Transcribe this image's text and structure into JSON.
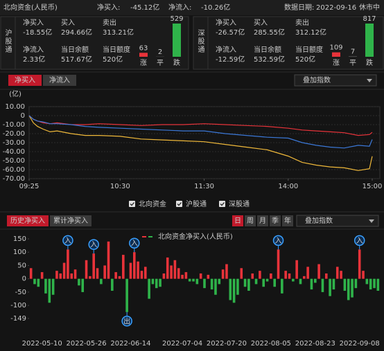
{
  "header": {
    "title": "北向资金(人民币)",
    "net_buy_label": "净买入:",
    "net_buy": "-45.12亿",
    "net_inflow_label": "净流入:",
    "net_inflow": "-10.26亿",
    "date_label": "数据日期:",
    "date": "2022-09-16",
    "status": "休市中"
  },
  "panels": [
    {
      "name": "沪股通",
      "cells": [
        {
          "label": "净买入",
          "value": "-18.55亿",
          "color": "#2fb34a"
        },
        {
          "label": "买入",
          "value": "294.66亿"
        },
        {
          "label": "卖出",
          "value": "313.21亿"
        },
        {
          "label": "净流入",
          "value": "2.33亿",
          "color": "#e8333a"
        },
        {
          "label": "当日余额",
          "value": "517.67亿"
        },
        {
          "label": "当日额度",
          "value": "520亿"
        }
      ],
      "breadth": {
        "categories": [
          "涨",
          "平",
          "跌"
        ],
        "values": [
          63,
          2,
          529
        ],
        "colors": [
          "#e8333a",
          "#888888",
          "#2fb34a"
        ]
      }
    },
    {
      "name": "深股通",
      "cells": [
        {
          "label": "净买入",
          "value": "-26.57亿",
          "color": "#2fb34a"
        },
        {
          "label": "买入",
          "value": "285.55亿"
        },
        {
          "label": "卖出",
          "value": "312.12亿"
        },
        {
          "label": "净流入",
          "value": "-12.59亿",
          "color": "#2fb34a"
        },
        {
          "label": "当日余额",
          "value": "532.59亿"
        },
        {
          "label": "当日额度",
          "value": "520亿"
        }
      ],
      "breadth": {
        "categories": [
          "涨",
          "平",
          "跌"
        ],
        "values": [
          109,
          7,
          817
        ],
        "colors": [
          "#e8333a",
          "#888888",
          "#2fb34a"
        ]
      }
    }
  ],
  "chart_data": [
    {
      "type": "line",
      "tabs": [
        "净买入",
        "净流入"
      ],
      "overlay": "叠加指数",
      "y_label": "(亿)",
      "grid": true,
      "x": [
        0,
        3,
        6,
        10,
        15,
        20,
        30,
        40,
        50,
        65,
        80,
        95,
        110,
        125,
        140,
        155,
        170,
        185,
        195,
        205,
        215,
        225,
        235,
        243,
        245
      ],
      "xlim": [
        0,
        245
      ],
      "xticks": [
        {
          "value": 0,
          "label": "09:25"
        },
        {
          "value": 65,
          "label": "10:30"
        },
        {
          "value": 125,
          "label": "11:30"
        },
        {
          "value": 185,
          "label": "14:00"
        },
        {
          "value": 245,
          "label": "15:00"
        }
      ],
      "ylim": [
        -70,
        10
      ],
      "yticks": [
        {
          "value": 10,
          "label": "10.00"
        },
        0,
        {
          "value": -10,
          "label": "-10.00"
        },
        {
          "value": -20,
          "label": "-20.00"
        },
        {
          "value": -30,
          "label": "-30.00"
        },
        {
          "value": -40,
          "label": "-40.00"
        },
        {
          "value": -50,
          "label": "-50.00"
        },
        {
          "value": -60,
          "label": "-60.00"
        },
        {
          "value": -70,
          "label": "-70.00"
        }
      ],
      "series": [
        {
          "name": "北向资金",
          "color": "#f0b93a",
          "values": [
            0,
            -8,
            -12,
            -15,
            -18,
            -17,
            -20,
            -22,
            -22,
            -23,
            -26,
            -27,
            -28,
            -29,
            -32,
            -35,
            -38,
            -45,
            -52,
            -55,
            -57,
            -58,
            -61,
            -59,
            -45.12
          ]
        },
        {
          "name": "沪股通",
          "color": "#e8333a",
          "values": [
            0,
            -4,
            -6,
            -8,
            -9,
            -8,
            -10,
            -10,
            -9,
            -10,
            -11,
            -10,
            -10,
            -9,
            -10,
            -11,
            -12,
            -14,
            -16,
            -17,
            -18,
            -19,
            -22,
            -21,
            -18.55
          ]
        },
        {
          "name": "深股通",
          "color": "#3b78d8",
          "values": [
            0,
            -4,
            -6,
            -7,
            -9,
            -9,
            -10,
            -12,
            -13,
            -14,
            -15,
            -16,
            -17,
            -17,
            -20,
            -22,
            -24,
            -25,
            -30,
            -33,
            -35,
            -36,
            -33,
            -34,
            -26.57
          ]
        }
      ]
    },
    {
      "type": "bar",
      "tabs": [
        "历史净买入",
        "累计净买入"
      ],
      "periods": [
        "日",
        "周",
        "月",
        "季",
        "年"
      ],
      "overlay": "叠加指数",
      "title": "北向资金净买入(人民币)",
      "colors": {
        "positive": "#e8333a",
        "negative": "#2fb34a"
      },
      "ylim": [
        -149,
        150
      ],
      "yticks": [
        150,
        100,
        50,
        0,
        -50,
        -100,
        -149
      ],
      "categories": [
        null,
        null,
        null,
        "2022-05-10",
        null,
        null,
        null,
        null,
        null,
        null,
        null,
        null,
        null,
        null,
        null,
        "2022-05-26",
        null,
        null,
        null,
        null,
        null,
        null,
        null,
        null,
        null,
        null,
        null,
        "2022-06-14",
        null,
        null,
        null,
        null,
        null,
        null,
        null,
        null,
        null,
        null,
        null,
        null,
        null,
        "2022-07-04",
        null,
        null,
        null,
        null,
        null,
        null,
        null,
        null,
        null,
        null,
        null,
        "2022-07-20",
        null,
        null,
        null,
        null,
        null,
        null,
        null,
        null,
        null,
        null,
        null,
        "2022-08-05",
        null,
        null,
        null,
        null,
        null,
        null,
        null,
        null,
        null,
        null,
        null,
        "2022-08-23",
        null,
        null,
        null,
        null,
        null,
        null,
        null,
        null,
        null,
        null,
        null,
        "2022-09-08",
        null,
        null,
        null,
        null,
        null
      ],
      "values": [
        40,
        -20,
        -30,
        25,
        -55,
        -90,
        -60,
        30,
        20,
        60,
        110,
        20,
        35,
        -25,
        -50,
        70,
        10,
        95,
        40,
        -20,
        50,
        140,
        -45,
        25,
        10,
        90,
        -125,
        60,
        100,
        65,
        30,
        45,
        -75,
        -20,
        -35,
        -30,
        20,
        80,
        50,
        70,
        40,
        15,
        25,
        -10,
        -10,
        -20,
        20,
        -35,
        15,
        -40,
        -60,
        -20,
        35,
        55,
        -80,
        -90,
        -60,
        40,
        -30,
        -45,
        20,
        -20,
        30,
        -30,
        -10,
        20,
        -30,
        110,
        -55,
        30,
        20,
        -10,
        70,
        -20,
        10,
        45,
        -40,
        -15,
        55,
        -50,
        20,
        -65,
        -40,
        45,
        30,
        -45,
        -80,
        -70,
        -35,
        110,
        30,
        -20,
        -40,
        -35,
        -45
      ],
      "signals": [
        null,
        null,
        null,
        null,
        null,
        null,
        null,
        null,
        null,
        null,
        "入",
        null,
        null,
        null,
        null,
        null,
        null,
        "入",
        null,
        null,
        null,
        null,
        null,
        null,
        null,
        null,
        "出",
        null,
        "入",
        null,
        null,
        null,
        null,
        null,
        null,
        null,
        null,
        null,
        null,
        null,
        null,
        null,
        null,
        null,
        null,
        null,
        null,
        null,
        null,
        null,
        null,
        null,
        null,
        null,
        null,
        null,
        null,
        null,
        null,
        null,
        null,
        null,
        null,
        null,
        null,
        null,
        null,
        "入",
        null,
        null,
        null,
        null,
        null,
        null,
        null,
        null,
        null,
        null,
        null,
        null,
        null,
        null,
        null,
        null,
        null,
        null,
        null,
        null,
        null,
        "入",
        null,
        null,
        null,
        null,
        null
      ]
    }
  ]
}
